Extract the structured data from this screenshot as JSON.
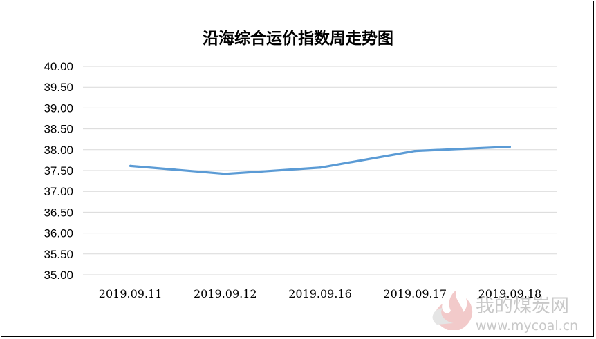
{
  "chart_data": {
    "type": "line",
    "title": "沿海综合运价指数周走势图",
    "categories": [
      "2019.09.11",
      "2019.09.12",
      "2019.09.16",
      "2019.09.17",
      "2019.09.18"
    ],
    "series": [
      {
        "values": [
          37.61,
          37.42,
          37.57,
          37.97,
          38.07
        ]
      }
    ],
    "ylim": [
      35.0,
      40.0
    ],
    "ytick_labels": [
      "35.00",
      "35.50",
      "36.00",
      "36.50",
      "37.00",
      "37.50",
      "38.00",
      "38.50",
      "39.00",
      "39.50",
      "40.00"
    ],
    "grid": true,
    "legend": "none",
    "line_color": "#5b9bd5"
  },
  "watermark": {
    "text": "我的煤炭网",
    "url": "www.mycoal.cn",
    "icon": "flame-logo-icon"
  }
}
